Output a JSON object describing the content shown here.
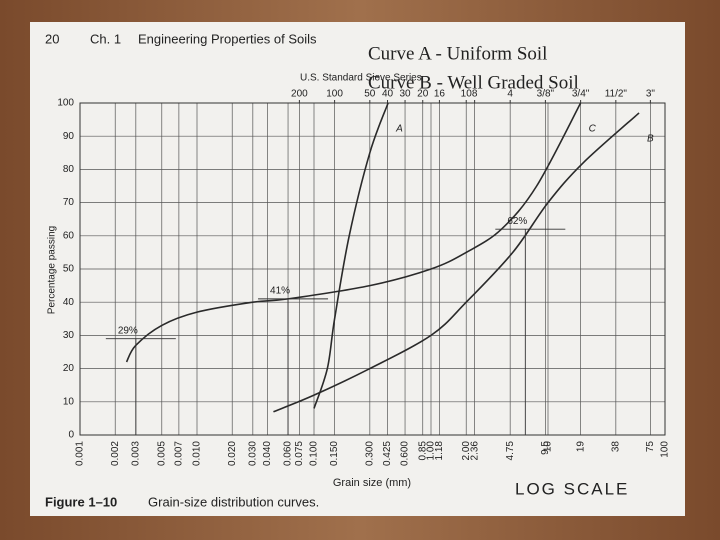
{
  "page": {
    "number": "20",
    "chapter": "Ch. 1",
    "chapter_title": "Engineering Properties of Soils",
    "overlay": [
      "Curve A - Uniform Soil",
      "Curve B - Well Graded Soil"
    ],
    "figure_label": "Figure 1–10",
    "figure_caption": "Grain-size distribution curves.",
    "handwritten_note": "LOG SCALE"
  },
  "chart_data": {
    "type": "line",
    "x_label": "Grain size (mm)",
    "y_label": "Percentage passing",
    "top_axis_title": "U.S. Standard Sieve Series",
    "xscale": "log",
    "grid": true,
    "color": "#2a2a2a",
    "xlim": [
      0.001,
      100
    ],
    "ylim": [
      0,
      100
    ],
    "yticks": [
      0,
      10,
      20,
      30,
      40,
      50,
      60,
      70,
      80,
      90,
      100
    ],
    "xticks": [
      0.001,
      0.002,
      0.003,
      0.005,
      0.007,
      {
        "value": 0.01,
        "label": "0.010"
      },
      {
        "value": 0.02,
        "label": "0.020"
      },
      {
        "value": 0.03,
        "label": "0.030"
      },
      {
        "value": 0.04,
        "label": "0.040"
      },
      {
        "value": 0.06,
        "label": "0.060"
      },
      0.075,
      {
        "value": 0.1,
        "label": "0.100"
      },
      {
        "value": 0.15,
        "label": "0.150"
      },
      {
        "value": 0.3,
        "label": "0.300"
      },
      0.425,
      {
        "value": 0.6,
        "label": "0.600"
      },
      0.85,
      {
        "value": 1,
        "label": "1.00"
      },
      1.18,
      {
        "value": 2,
        "label": "2.00"
      },
      2.36,
      4.75,
      9.5,
      10,
      19,
      38,
      75,
      100
    ],
    "sieve_ticks": [
      {
        "value": 0.075,
        "label": "200"
      },
      {
        "value": 0.15,
        "label": "100"
      },
      {
        "value": 0.3,
        "label": "50"
      },
      {
        "value": 0.425,
        "label": "40"
      },
      {
        "value": 0.6,
        "label": "30"
      },
      {
        "value": 0.85,
        "label": "20"
      },
      {
        "value": 1.18,
        "label": "16"
      },
      {
        "value": 2,
        "label": "10"
      },
      {
        "value": 2.36,
        "label": "8"
      },
      {
        "value": 4.75,
        "label": "4"
      },
      {
        "value": 9.5,
        "label": "3/8\""
      },
      {
        "value": 19,
        "label": "3/4\""
      },
      {
        "value": 38,
        "label": "11/2\""
      },
      {
        "value": 75,
        "label": "3\""
      }
    ],
    "series": [
      {
        "name": "A",
        "x": [
          0.1,
          0.13,
          0.15,
          0.2,
          0.3,
          0.43
        ],
        "values": [
          8,
          20,
          35,
          60,
          85,
          100
        ]
      },
      {
        "name": "B",
        "x": [
          0.045,
          0.1,
          0.3,
          1,
          2,
          5,
          10,
          20,
          60
        ],
        "values": [
          7,
          12,
          20,
          30,
          40,
          55,
          70,
          82,
          97
        ]
      },
      {
        "name": "C",
        "x": [
          0.0025,
          0.003,
          0.005,
          0.01,
          0.03,
          0.06,
          0.3,
          1,
          2,
          4,
          8,
          19
        ],
        "values": [
          22,
          27,
          33,
          37,
          40,
          41,
          45,
          50,
          55,
          62,
          75,
          100
        ]
      }
    ],
    "annotations": [
      {
        "label": "29%",
        "x": 0.003,
        "y": 29
      },
      {
        "label": "41%",
        "x": 0.06,
        "y": 41
      },
      {
        "label": "62%",
        "x": 6.4,
        "y": 62
      }
    ]
  }
}
